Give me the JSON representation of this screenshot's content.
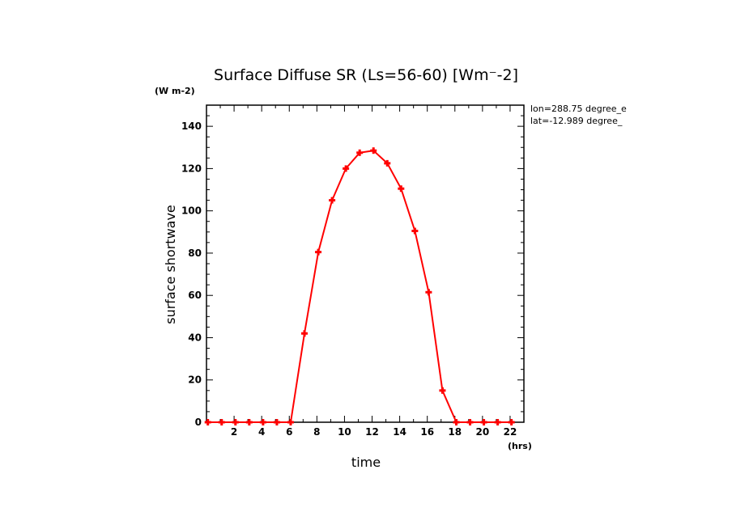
{
  "chart_data": {
    "type": "line",
    "title": "Surface Diffuse SR (Ls=56-60) [Wm⁻-2]",
    "ylabel": "surface shortwave",
    "yunit": "(W m-2)",
    "xlabel": "time",
    "xunit": "(hrs)",
    "annotations": [
      "lon=288.75 degree_e",
      "lat=-12.989 degree_"
    ],
    "xlim": [
      0,
      23
    ],
    "ylim": [
      0,
      150
    ],
    "xticks": [
      2,
      4,
      6,
      8,
      10,
      12,
      14,
      16,
      18,
      20,
      22
    ],
    "yticks": [
      0,
      20,
      40,
      60,
      80,
      100,
      120,
      140
    ],
    "grid": false,
    "series": [
      {
        "color": "#ff0000",
        "marker": "plus",
        "x": [
          0.1,
          1.1,
          2.1,
          3.1,
          4.1,
          5.1,
          6.1,
          7.1,
          8.1,
          9.1,
          10.1,
          11.1,
          12.1,
          13.1,
          14.1,
          15.1,
          16.1,
          17.1,
          18.1,
          19.1,
          20.1,
          21.1,
          22.1
        ],
        "values": [
          0,
          0,
          0,
          0,
          0,
          0,
          0,
          42,
          80.5,
          105,
          120,
          127.5,
          128.5,
          122.5,
          110.5,
          90.5,
          61.5,
          15,
          0,
          0,
          0,
          0,
          0
        ]
      }
    ]
  }
}
